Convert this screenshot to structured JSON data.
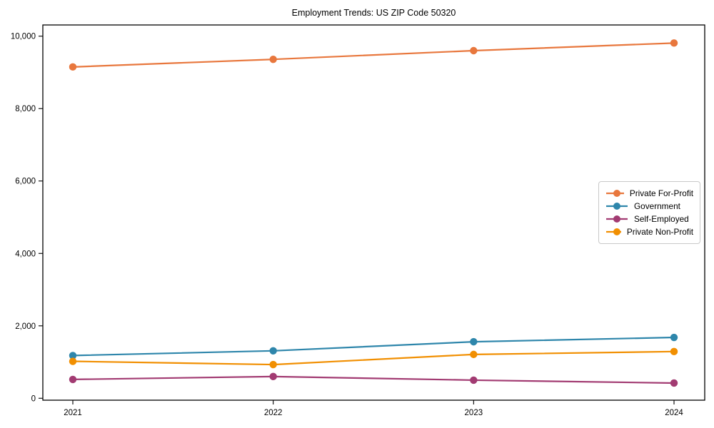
{
  "title": "Employment Trends: US ZIP Code 50320",
  "chart_data": {
    "type": "line",
    "title": "Employment Trends: US ZIP Code 50320",
    "x": [
      2021,
      2022,
      2023,
      2024
    ],
    "xtick_labels": [
      "2021",
      "2022",
      "2023",
      "2024"
    ],
    "yticks": [
      0,
      2000,
      4000,
      6000,
      8000,
      10000
    ],
    "ytick_labels": [
      "0",
      "2,000",
      "4,000",
      "6,000",
      "8,000",
      "10,000"
    ],
    "ylim": [
      0,
      10000
    ],
    "xlabel": "",
    "ylabel": "",
    "grid": false,
    "marker": "circle",
    "legend_position": "center-right",
    "frame_color": "#000000",
    "series": [
      {
        "name": "Private For-Profit",
        "color": "#E8773D",
        "values": [
          9150,
          9360,
          9600,
          9810
        ]
      },
      {
        "name": "Government",
        "color": "#2E86AB",
        "values": [
          1180,
          1310,
          1560,
          1680
        ]
      },
      {
        "name": "Self-Employed",
        "color": "#A23B72",
        "values": [
          520,
          600,
          500,
          420
        ]
      },
      {
        "name": "Private Non-Profit",
        "color": "#F18F01",
        "values": [
          1020,
          930,
          1210,
          1290
        ]
      }
    ]
  }
}
